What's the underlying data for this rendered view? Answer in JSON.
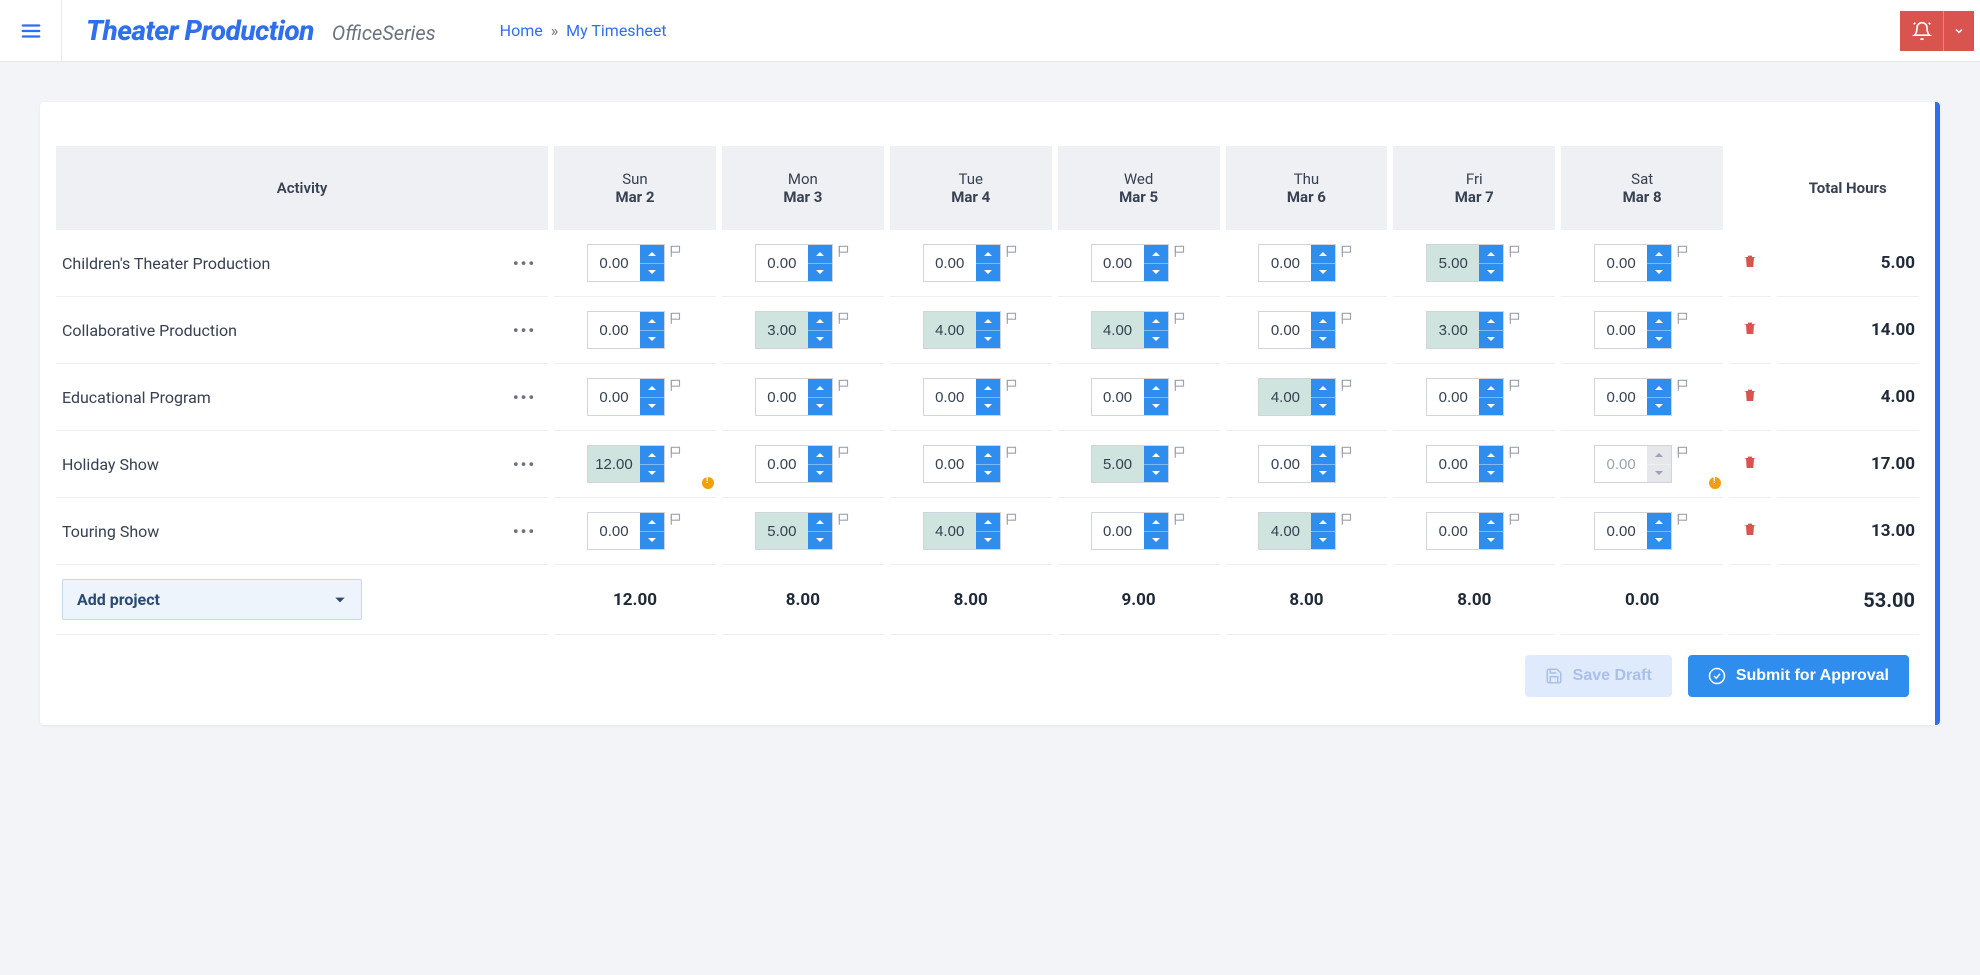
{
  "header": {
    "brand_title": "Theater Production",
    "brand_sub": "OfficeSeries",
    "breadcrumb_home": "Home",
    "breadcrumb_current": "My Timesheet"
  },
  "table": {
    "activity_header": "Activity",
    "total_header": "Total Hours",
    "days": [
      {
        "dow": "Sun",
        "date": "Mar 2"
      },
      {
        "dow": "Mon",
        "date": "Mar 3"
      },
      {
        "dow": "Tue",
        "date": "Mar 4"
      },
      {
        "dow": "Wed",
        "date": "Mar 5"
      },
      {
        "dow": "Thu",
        "date": "Mar 6"
      },
      {
        "dow": "Fri",
        "date": "Mar 7"
      },
      {
        "dow": "Sat",
        "date": "Mar 8"
      }
    ],
    "rows": [
      {
        "name": "Children's Theater Production",
        "cells": [
          {
            "value": "0.00",
            "highlight": false,
            "warn": false,
            "disabled": false
          },
          {
            "value": "0.00",
            "highlight": false,
            "warn": false,
            "disabled": false
          },
          {
            "value": "0.00",
            "highlight": false,
            "warn": false,
            "disabled": false
          },
          {
            "value": "0.00",
            "highlight": false,
            "warn": false,
            "disabled": false
          },
          {
            "value": "0.00",
            "highlight": false,
            "warn": false,
            "disabled": false
          },
          {
            "value": "5.00",
            "highlight": true,
            "warn": false,
            "disabled": false
          },
          {
            "value": "0.00",
            "highlight": false,
            "warn": false,
            "disabled": false
          }
        ],
        "total": "5.00"
      },
      {
        "name": "Collaborative Production",
        "cells": [
          {
            "value": "0.00",
            "highlight": false,
            "warn": false,
            "disabled": false
          },
          {
            "value": "3.00",
            "highlight": true,
            "warn": false,
            "disabled": false
          },
          {
            "value": "4.00",
            "highlight": true,
            "warn": false,
            "disabled": false
          },
          {
            "value": "4.00",
            "highlight": true,
            "warn": false,
            "disabled": false
          },
          {
            "value": "0.00",
            "highlight": false,
            "warn": false,
            "disabled": false
          },
          {
            "value": "3.00",
            "highlight": true,
            "warn": false,
            "disabled": false
          },
          {
            "value": "0.00",
            "highlight": false,
            "warn": false,
            "disabled": false
          }
        ],
        "total": "14.00"
      },
      {
        "name": "Educational Program",
        "cells": [
          {
            "value": "0.00",
            "highlight": false,
            "warn": false,
            "disabled": false
          },
          {
            "value": "0.00",
            "highlight": false,
            "warn": false,
            "disabled": false
          },
          {
            "value": "0.00",
            "highlight": false,
            "warn": false,
            "disabled": false
          },
          {
            "value": "0.00",
            "highlight": false,
            "warn": false,
            "disabled": false
          },
          {
            "value": "4.00",
            "highlight": true,
            "warn": false,
            "disabled": false
          },
          {
            "value": "0.00",
            "highlight": false,
            "warn": false,
            "disabled": false
          },
          {
            "value": "0.00",
            "highlight": false,
            "warn": false,
            "disabled": false
          }
        ],
        "total": "4.00"
      },
      {
        "name": "Holiday Show",
        "cells": [
          {
            "value": "12.00",
            "highlight": true,
            "warn": true,
            "disabled": false
          },
          {
            "value": "0.00",
            "highlight": false,
            "warn": false,
            "disabled": false
          },
          {
            "value": "0.00",
            "highlight": false,
            "warn": false,
            "disabled": false
          },
          {
            "value": "5.00",
            "highlight": true,
            "warn": false,
            "disabled": false
          },
          {
            "value": "0.00",
            "highlight": false,
            "warn": false,
            "disabled": false
          },
          {
            "value": "0.00",
            "highlight": false,
            "warn": false,
            "disabled": false
          },
          {
            "value": "0.00",
            "highlight": false,
            "warn": true,
            "disabled": true
          }
        ],
        "total": "17.00"
      },
      {
        "name": "Touring Show",
        "cells": [
          {
            "value": "0.00",
            "highlight": false,
            "warn": false,
            "disabled": false
          },
          {
            "value": "5.00",
            "highlight": true,
            "warn": false,
            "disabled": false
          },
          {
            "value": "4.00",
            "highlight": true,
            "warn": false,
            "disabled": false
          },
          {
            "value": "0.00",
            "highlight": false,
            "warn": false,
            "disabled": false
          },
          {
            "value": "4.00",
            "highlight": true,
            "warn": false,
            "disabled": false
          },
          {
            "value": "0.00",
            "highlight": false,
            "warn": false,
            "disabled": false
          },
          {
            "value": "0.00",
            "highlight": false,
            "warn": false,
            "disabled": false
          }
        ],
        "total": "13.00"
      }
    ],
    "day_totals": [
      "12.00",
      "8.00",
      "8.00",
      "9.00",
      "8.00",
      "8.00",
      "0.00"
    ],
    "grand_total": "53.00",
    "add_project_label": "Add project"
  },
  "actions": {
    "save_draft": "Save Draft",
    "submit": "Submit for Approval"
  },
  "colors": {
    "accent": "#2f6fed",
    "button_blue": "#2f8eed",
    "danger": "#d9534f",
    "highlight_bg": "#cfe4df",
    "warn": "#f59e0b",
    "page_bg": "#f2f4f7"
  }
}
